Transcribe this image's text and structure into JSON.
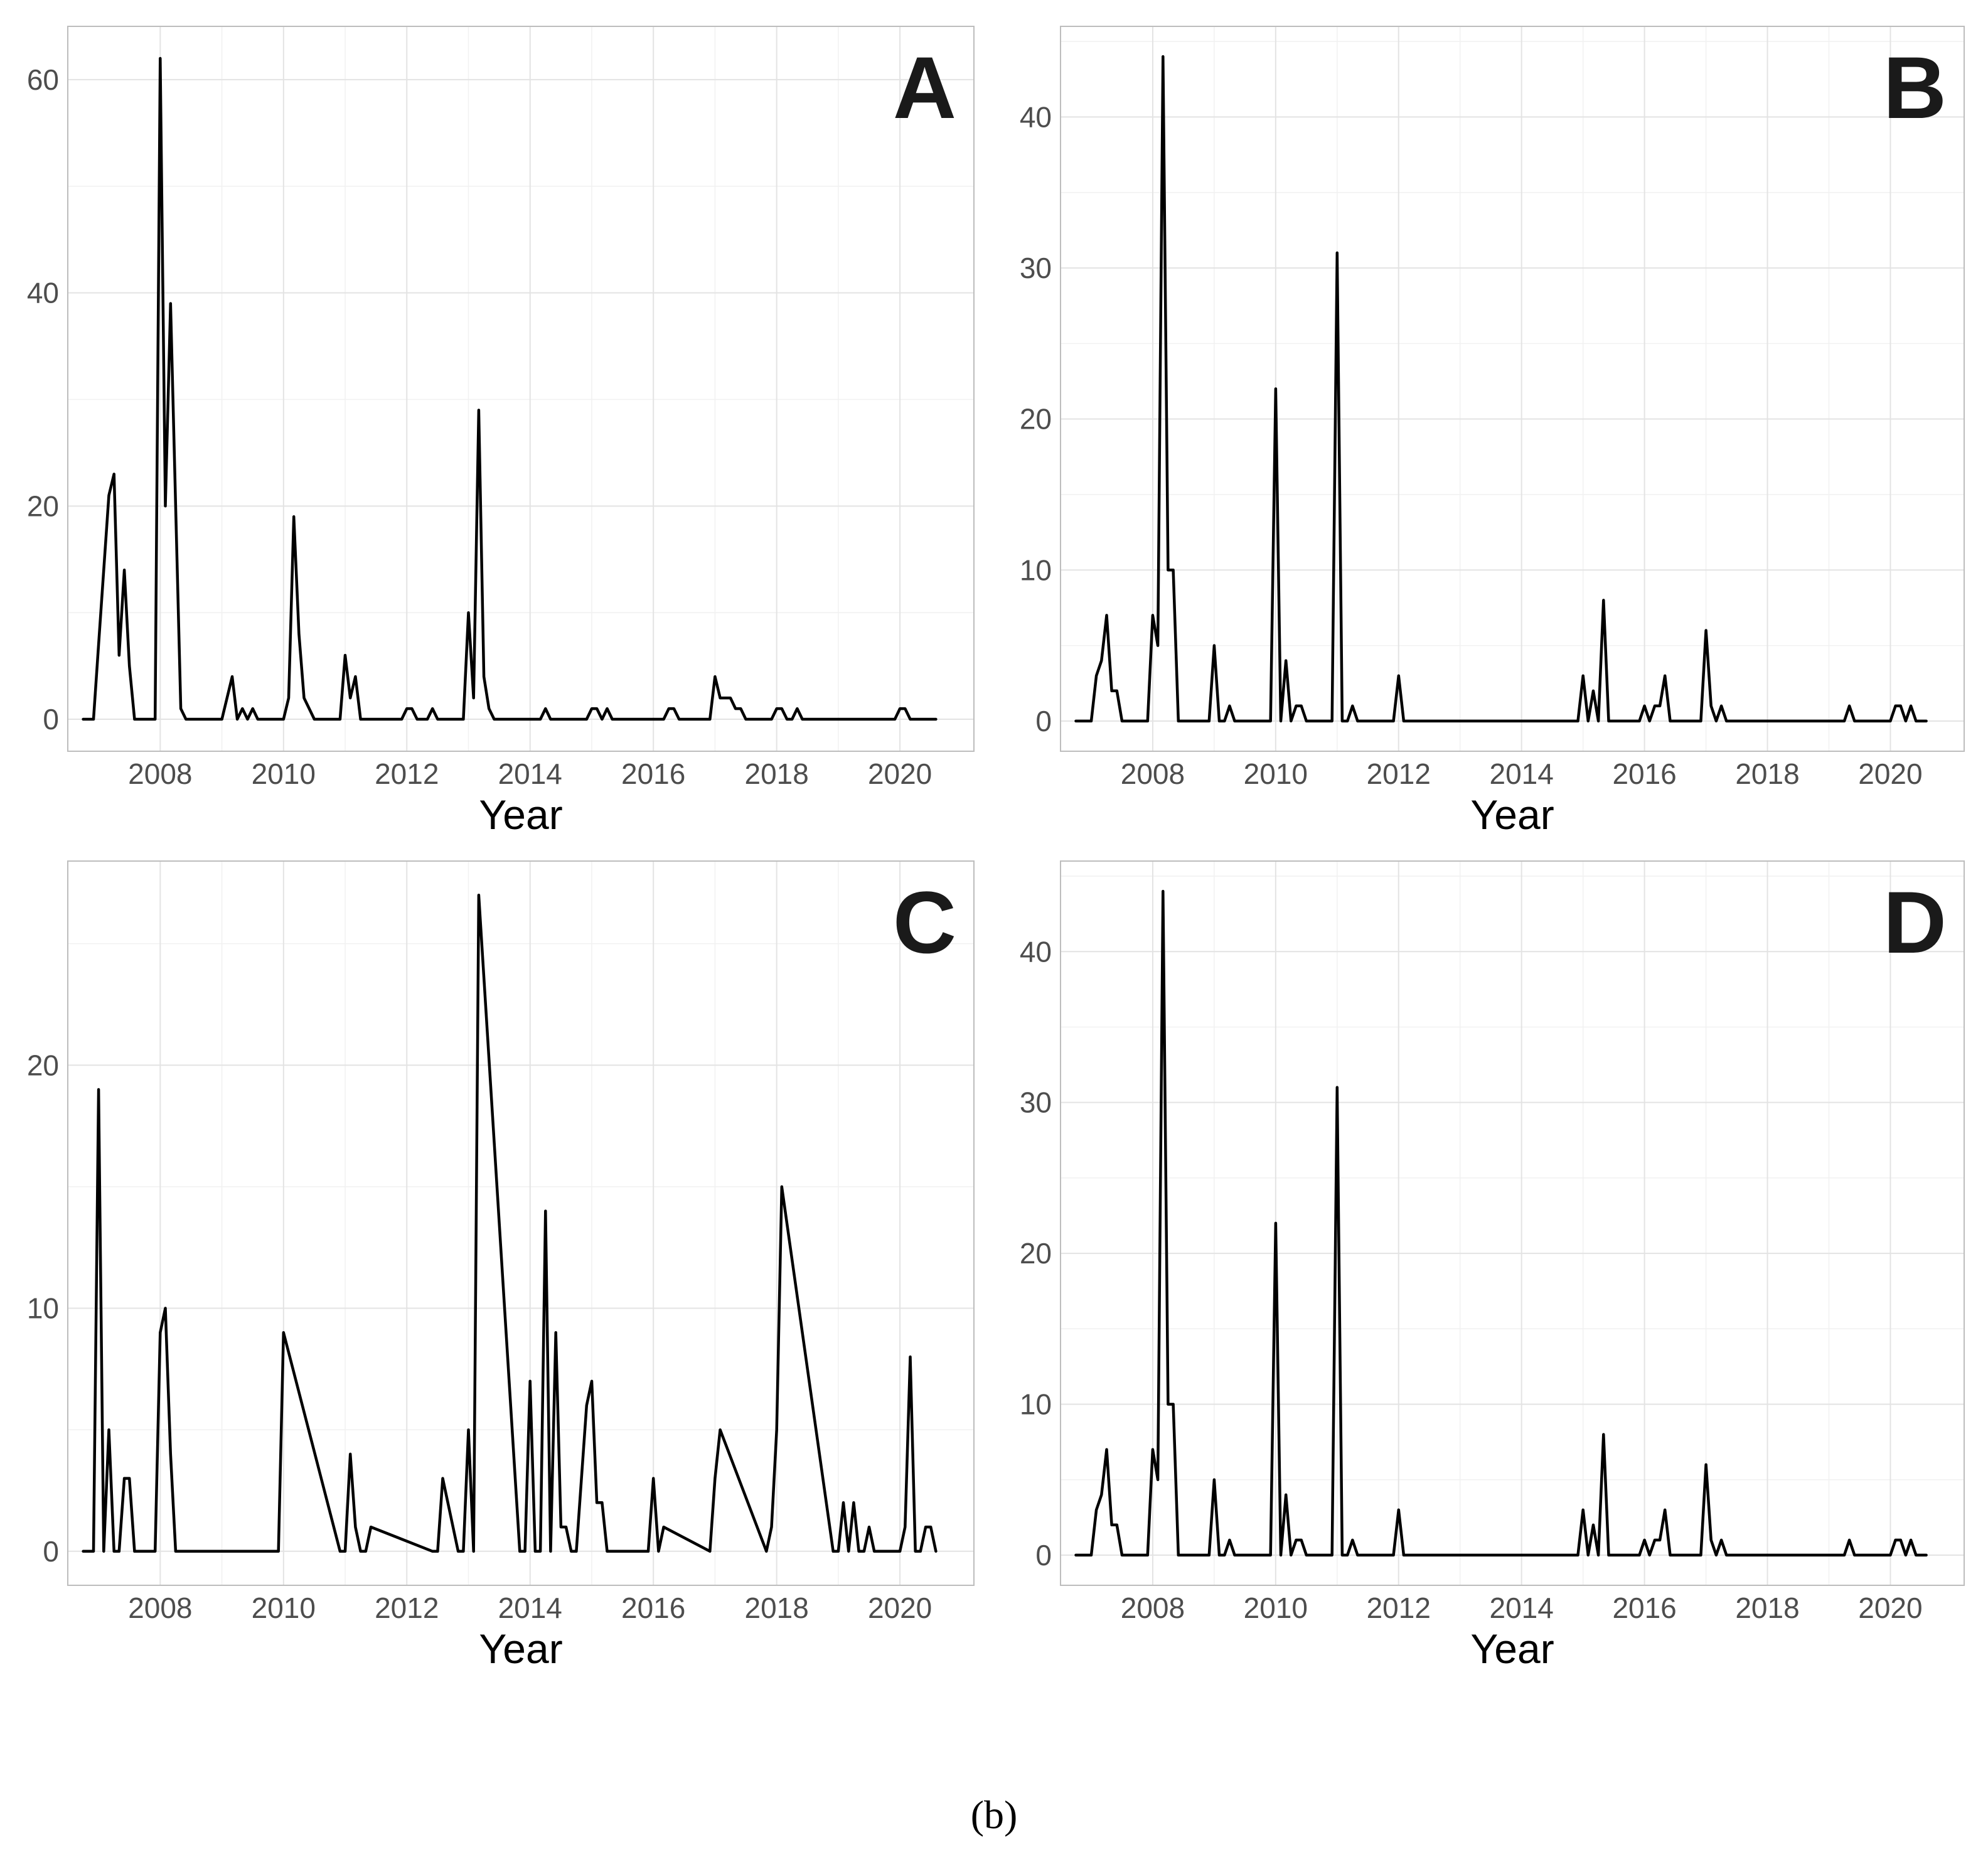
{
  "colors": {
    "line": "#000000",
    "grid_major": "#e3e3e3",
    "grid_minor": "#f1f1f1",
    "border": "#bdbdbd"
  },
  "caption": "(b)",
  "chart_data": [
    {
      "type": "line",
      "panel": "A",
      "xlabel": "Year",
      "ylabel": "",
      "xlim": [
        2006.5,
        2021.2
      ],
      "ylim": [
        -3,
        65
      ],
      "xticks": [
        2008,
        2010,
        2012,
        2014,
        2016,
        2018,
        2020
      ],
      "xtick_labels": [
        "2008",
        "2010",
        "2012",
        "2014",
        "2016",
        "2018",
        "2020"
      ],
      "yticks": [
        0,
        20,
        40,
        60
      ],
      "ytick_labels": [
        "0",
        "20",
        "40",
        "60"
      ],
      "x": [
        2006.75,
        2006.917,
        2007.0,
        2007.167,
        2007.25,
        2007.333,
        2007.417,
        2007.5,
        2007.583,
        2007.917,
        2008.0,
        2008.083,
        2008.167,
        2008.25,
        2008.333,
        2008.417,
        2008.5,
        2009.0,
        2009.167,
        2009.25,
        2009.333,
        2009.417,
        2009.5,
        2009.583,
        2009.667,
        2010.0,
        2010.083,
        2010.167,
        2010.25,
        2010.333,
        2010.5,
        2010.917,
        2011.0,
        2011.083,
        2011.167,
        2011.25,
        2011.333,
        2011.917,
        2012.0,
        2012.083,
        2012.167,
        2012.333,
        2012.417,
        2012.5,
        2012.917,
        2013.0,
        2013.083,
        2013.167,
        2013.25,
        2013.333,
        2013.417,
        2014.167,
        2014.25,
        2014.333,
        2014.917,
        2015.0,
        2015.083,
        2015.167,
        2015.25,
        2015.333,
        2016.167,
        2016.25,
        2016.333,
        2016.417,
        2016.917,
        2017.0,
        2017.083,
        2017.167,
        2017.25,
        2017.333,
        2017.417,
        2017.5,
        2017.583,
        2017.917,
        2018.0,
        2018.083,
        2018.167,
        2018.25,
        2018.333,
        2018.417,
        2019.917,
        2020.0,
        2020.083,
        2020.167,
        2020.25,
        2020.333,
        2020.583
      ],
      "y": [
        0,
        0,
        7,
        21,
        23,
        6,
        14,
        5,
        0,
        0,
        62,
        20,
        39,
        20,
        1,
        0,
        0,
        0,
        4,
        0,
        1,
        0,
        1,
        0,
        0,
        0,
        2,
        19,
        8,
        2,
        0,
        0,
        6,
        2,
        4,
        0,
        0,
        0,
        1,
        1,
        0,
        0,
        1,
        0,
        0,
        10,
        2,
        29,
        4,
        1,
        0,
        0,
        1,
        0,
        0,
        1,
        1,
        0,
        1,
        0,
        0,
        1,
        1,
        0,
        0,
        4,
        2,
        2,
        2,
        1,
        1,
        0,
        0,
        0,
        1,
        1,
        0,
        0,
        1,
        0,
        0,
        1,
        1,
        0,
        0,
        0,
        0
      ]
    },
    {
      "type": "line",
      "panel": "B",
      "xlabel": "Year",
      "ylabel": "",
      "xlim": [
        2006.5,
        2021.2
      ],
      "ylim": [
        -2,
        46
      ],
      "xticks": [
        2008,
        2010,
        2012,
        2014,
        2016,
        2018,
        2020
      ],
      "xtick_labels": [
        "2008",
        "2010",
        "2012",
        "2014",
        "2016",
        "2018",
        "2020"
      ],
      "yticks": [
        0,
        10,
        20,
        30,
        40
      ],
      "ytick_labels": [
        "0",
        "10",
        "20",
        "30",
        "40"
      ],
      "x": [
        2006.75,
        2007.0,
        2007.083,
        2007.167,
        2007.25,
        2007.333,
        2007.417,
        2007.5,
        2007.917,
        2008.0,
        2008.083,
        2008.167,
        2008.25,
        2008.333,
        2008.417,
        2008.5,
        2008.917,
        2009.0,
        2009.083,
        2009.167,
        2009.25,
        2009.333,
        2009.917,
        2010.0,
        2010.083,
        2010.167,
        2010.25,
        2010.333,
        2010.417,
        2010.5,
        2010.917,
        2011.0,
        2011.083,
        2011.167,
        2011.25,
        2011.333,
        2011.917,
        2012.0,
        2012.083,
        2014.917,
        2015.0,
        2015.083,
        2015.167,
        2015.25,
        2015.333,
        2015.417,
        2015.917,
        2016.0,
        2016.083,
        2016.167,
        2016.25,
        2016.333,
        2016.417,
        2016.917,
        2017.0,
        2017.083,
        2017.167,
        2017.25,
        2017.333,
        2019.25,
        2019.333,
        2019.417,
        2020.0,
        2020.083,
        2020.167,
        2020.25,
        2020.333,
        2020.417,
        2020.583
      ],
      "y": [
        0,
        0,
        3,
        4,
        7,
        2,
        2,
        0,
        0,
        7,
        5,
        44,
        10,
        10,
        0,
        0,
        0,
        5,
        0,
        0,
        1,
        0,
        0,
        22,
        0,
        4,
        0,
        1,
        1,
        0,
        0,
        31,
        0,
        0,
        1,
        0,
        0,
        3,
        0,
        0,
        3,
        0,
        2,
        0,
        8,
        0,
        0,
        1,
        0,
        1,
        1,
        3,
        0,
        0,
        6,
        1,
        0,
        1,
        0,
        0,
        1,
        0,
        0,
        1,
        1,
        0,
        1,
        0,
        0
      ]
    },
    {
      "type": "line",
      "panel": "C",
      "xlabel": "Year",
      "ylabel": "",
      "xlim": [
        2006.5,
        2021.2
      ],
      "ylim": [
        -1.4,
        28.4
      ],
      "xticks": [
        2008,
        2010,
        2012,
        2014,
        2016,
        2018,
        2020
      ],
      "xtick_labels": [
        "2008",
        "2010",
        "2012",
        "2014",
        "2016",
        "2018",
        "2020"
      ],
      "yticks": [
        0,
        10,
        20
      ],
      "ytick_labels": [
        "0",
        "10",
        "20"
      ],
      "x": [
        2006.75,
        2006.917,
        2007.0,
        2007.083,
        2007.167,
        2007.25,
        2007.333,
        2007.417,
        2007.5,
        2007.583,
        2007.833,
        2007.917,
        2008.0,
        2008.083,
        2008.167,
        2008.25,
        2009.833,
        2009.917,
        2010.0,
        2010.917,
        2011.0,
        2011.083,
        2011.167,
        2011.25,
        2011.333,
        2011.417,
        2012.417,
        2012.5,
        2012.583,
        2012.833,
        2012.917,
        2013.0,
        2013.083,
        2013.167,
        2013.833,
        2013.917,
        2014.0,
        2014.083,
        2014.167,
        2014.25,
        2014.333,
        2014.417,
        2014.5,
        2014.583,
        2014.667,
        2014.75,
        2014.917,
        2015.0,
        2015.083,
        2015.167,
        2015.25,
        2015.333,
        2015.833,
        2015.917,
        2016.0,
        2016.083,
        2016.167,
        2016.917,
        2017.0,
        2017.083,
        2017.833,
        2017.917,
        2018.0,
        2018.083,
        2018.917,
        2019.0,
        2019.083,
        2019.167,
        2019.25,
        2019.333,
        2019.417,
        2019.5,
        2019.583,
        2020.0,
        2020.083,
        2020.167,
        2020.25,
        2020.333,
        2020.417,
        2020.5,
        2020.583
      ],
      "y": [
        0,
        0,
        19,
        0,
        5,
        0,
        0,
        3,
        3,
        0,
        0,
        0,
        9,
        10,
        4,
        0,
        0,
        0,
        9,
        0,
        0,
        4,
        1,
        0,
        0,
        1,
        0,
        0,
        3,
        0,
        0,
        5,
        0,
        27,
        0,
        0,
        7,
        0,
        0,
        14,
        0,
        9,
        1,
        1,
        0,
        0,
        6,
        7,
        2,
        2,
        0,
        0,
        0,
        0,
        3,
        0,
        1,
        0,
        3,
        5,
        0,
        1,
        5,
        15,
        0,
        0,
        2,
        0,
        2,
        0,
        0,
        1,
        0,
        0,
        1,
        8,
        0,
        0,
        1,
        1,
        0
      ]
    },
    {
      "type": "line",
      "panel": "D",
      "xlabel": "Year",
      "ylabel": "",
      "xlim": [
        2006.5,
        2021.2
      ],
      "ylim": [
        -2,
        46
      ],
      "xticks": [
        2008,
        2010,
        2012,
        2014,
        2016,
        2018,
        2020
      ],
      "xtick_labels": [
        "2008",
        "2010",
        "2012",
        "2014",
        "2016",
        "2018",
        "2020"
      ],
      "yticks": [
        0,
        10,
        20,
        30,
        40
      ],
      "ytick_labels": [
        "0",
        "10",
        "20",
        "30",
        "40"
      ],
      "x": [
        2006.75,
        2007.0,
        2007.083,
        2007.167,
        2007.25,
        2007.333,
        2007.417,
        2007.5,
        2007.917,
        2008.0,
        2008.083,
        2008.167,
        2008.25,
        2008.333,
        2008.417,
        2008.5,
        2008.917,
        2009.0,
        2009.083,
        2009.167,
        2009.25,
        2009.333,
        2009.917,
        2010.0,
        2010.083,
        2010.167,
        2010.25,
        2010.333,
        2010.417,
        2010.5,
        2010.917,
        2011.0,
        2011.083,
        2011.167,
        2011.25,
        2011.333,
        2011.917,
        2012.0,
        2012.083,
        2014.917,
        2015.0,
        2015.083,
        2015.167,
        2015.25,
        2015.333,
        2015.417,
        2015.917,
        2016.0,
        2016.083,
        2016.167,
        2016.25,
        2016.333,
        2016.417,
        2016.917,
        2017.0,
        2017.083,
        2017.167,
        2017.25,
        2017.333,
        2019.25,
        2019.333,
        2019.417,
        2020.0,
        2020.083,
        2020.167,
        2020.25,
        2020.333,
        2020.417,
        2020.583
      ],
      "y": [
        0,
        0,
        3,
        4,
        7,
        2,
        2,
        0,
        0,
        7,
        5,
        44,
        10,
        10,
        0,
        0,
        0,
        5,
        0,
        0,
        1,
        0,
        0,
        22,
        0,
        4,
        0,
        1,
        1,
        0,
        0,
        31,
        0,
        0,
        1,
        0,
        0,
        3,
        0,
        0,
        3,
        0,
        2,
        0,
        8,
        0,
        0,
        1,
        0,
        1,
        1,
        3,
        0,
        0,
        6,
        1,
        0,
        1,
        0,
        0,
        1,
        0,
        0,
        1,
        1,
        0,
        1,
        0,
        0
      ]
    }
  ]
}
